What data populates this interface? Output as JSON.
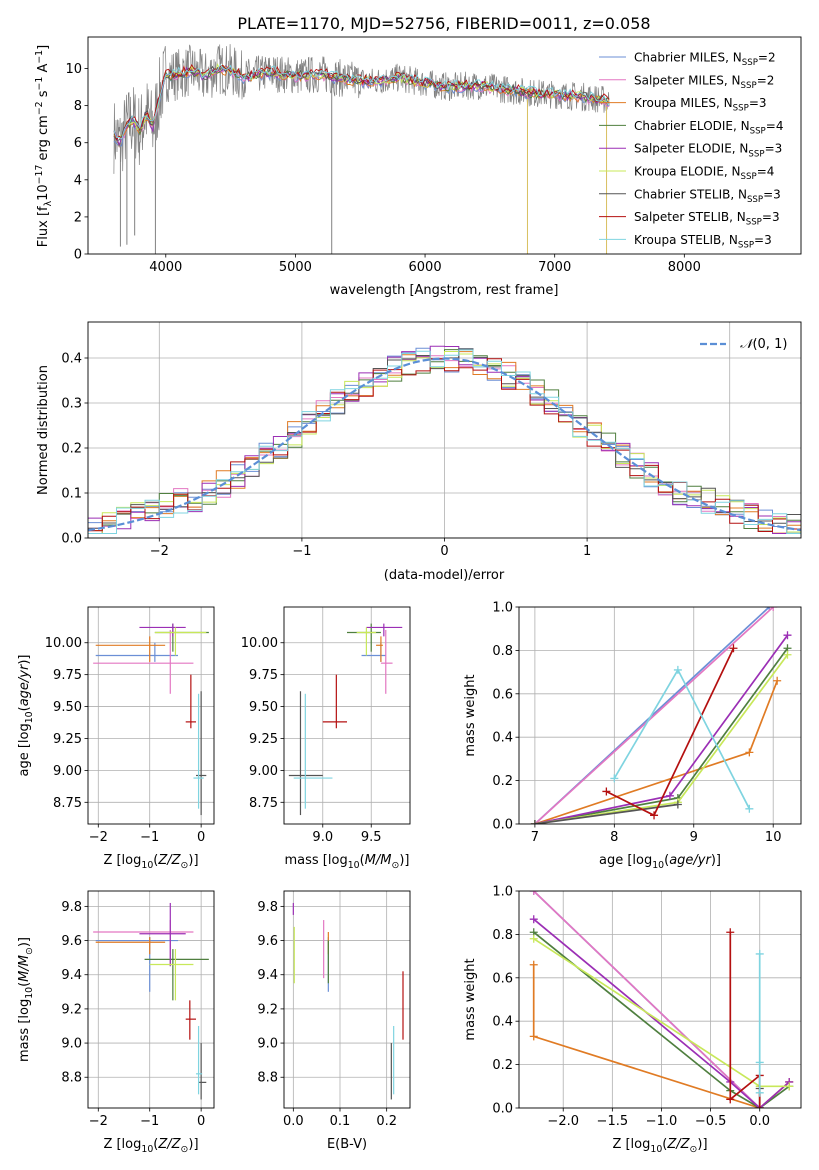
{
  "figure": {
    "title": "PLATE=1170, MJD=52756, FIBERID=0011, z=0.058"
  },
  "models": [
    {
      "key": "chabrier_miles",
      "label": "Chabrier MILES, N",
      "sub": "SSP",
      "nssp": "=2",
      "color": "#6b8fd6"
    },
    {
      "key": "salpeter_miles",
      "label": "Salpeter MILES, N",
      "sub": "SSP",
      "nssp": "=2",
      "color": "#e377c2"
    },
    {
      "key": "kroupa_miles",
      "label": "Kroupa MILES, N",
      "sub": "SSP",
      "nssp": "=3",
      "color": "#e07b24"
    },
    {
      "key": "chabrier_elodie",
      "label": "Chabrier ELODIE, N",
      "sub": "SSP",
      "nssp": "=4",
      "color": "#4f7f3f"
    },
    {
      "key": "salpeter_elodie",
      "label": "Salpeter ELODIE, N",
      "sub": "SSP",
      "nssp": "=3",
      "color": "#9b2fb5"
    },
    {
      "key": "kroupa_elodie",
      "label": "Kroupa ELODIE, N",
      "sub": "SSP",
      "nssp": "=4",
      "color": "#c8e85a"
    },
    {
      "key": "chabrier_stelib",
      "label": "Chabrier STELIB, N",
      "sub": "SSP",
      "nssp": "=3",
      "color": "#555555"
    },
    {
      "key": "salpeter_stelib",
      "label": "Salpeter STELIB, N",
      "sub": "SSP",
      "nssp": "=3",
      "color": "#b41010"
    },
    {
      "key": "kroupa_stelib",
      "label": "Kroupa STELIB, N",
      "sub": "SSP",
      "nssp": "=3",
      "color": "#7fd4e0"
    }
  ],
  "chart_data": [
    {
      "id": "spectrum",
      "type": "line",
      "xlabel": "wavelength [Angstrom, rest frame]",
      "ylabel": "Flux [f",
      "ylabel_full": "Flux [fλ10⁻¹⁷ erg cm⁻² s⁻¹ A⁻¹]",
      "xlim": [
        3400,
        8900
      ],
      "ylim": [
        0,
        11.7
      ],
      "xticks": [
        "4000",
        "5000",
        "6000",
        "7000",
        "8000"
      ],
      "yticks": [
        "0",
        "2",
        "4",
        "6",
        "8",
        "10"
      ],
      "legend": "top-right",
      "data_color": "#808080",
      "continuum": {
        "x": [
          3600,
          3650,
          3700,
          3750,
          3800,
          3850,
          3900,
          3950,
          4000,
          4100,
          4200,
          4300,
          4400,
          4500,
          4600,
          4800,
          5000,
          5200,
          5400,
          5600,
          5800,
          6000,
          6200,
          6400,
          6600,
          6800,
          7000,
          7200,
          7400
        ],
        "y": [
          6.4,
          6.0,
          6.9,
          7.2,
          6.6,
          7.6,
          6.8,
          8.5,
          9.6,
          9.7,
          9.9,
          9.5,
          10.0,
          9.9,
          9.5,
          9.8,
          9.6,
          9.7,
          9.4,
          9.3,
          9.5,
          9.2,
          9.0,
          9.1,
          8.9,
          8.7,
          8.6,
          8.5,
          8.3
        ]
      }
    },
    {
      "id": "residuals",
      "type": "histogram",
      "xlabel": "(data-model)/error",
      "ylabel": "Normed distribution",
      "xlim": [
        -2.5,
        2.5
      ],
      "ylim": [
        0,
        0.48
      ],
      "xticks": [
        "−2",
        "−1",
        "0",
        "1",
        "2"
      ],
      "yticks": [
        "0.0",
        "0.1",
        "0.2",
        "0.3",
        "0.4"
      ],
      "grid": true,
      "legend_label": "N(0, 1)",
      "legend": "top-right"
    },
    {
      "id": "age_vs_Z",
      "type": "errorbar",
      "xlabel": "Z [log",
      "xlabel_full": "Z [log10(Z/Z☉)]",
      "ylabel_full": "age [log10(age/yr)]",
      "xlim": [
        -2.2,
        0.25
      ],
      "ylim": [
        8.58,
        10.28
      ],
      "xticks": [
        "−2",
        "−1",
        "0"
      ],
      "yticks": [
        "8.75",
        "9.00",
        "9.25",
        "9.50",
        "9.75",
        "10.00"
      ],
      "points": [
        {
          "m": 0,
          "x": -0.9,
          "y": 9.9,
          "xe": [
            -2.05,
            -0.45
          ],
          "ye": [
            9.85,
            10.0
          ]
        },
        {
          "m": 1,
          "x": -0.6,
          "y": 9.84,
          "xe": [
            -2.1,
            -0.15
          ],
          "ye": [
            9.6,
            10.1
          ]
        },
        {
          "m": 2,
          "x": -1.0,
          "y": 9.98,
          "xe": [
            -2.05,
            -0.7
          ],
          "ye": [
            9.85,
            10.05
          ]
        },
        {
          "m": 3,
          "x": -0.55,
          "y": 10.08,
          "xe": [
            -0.9,
            0.15
          ],
          "ye": [
            9.93,
            10.15
          ]
        },
        {
          "m": 4,
          "x": -0.55,
          "y": 10.12,
          "xe": [
            -1.2,
            -0.3
          ],
          "ye": [
            10.05,
            10.15
          ]
        },
        {
          "m": 5,
          "x": -0.5,
          "y": 10.08,
          "xe": [
            -0.9,
            0.1
          ],
          "ye": [
            9.9,
            10.12
          ]
        },
        {
          "m": 6,
          "x": 0.0,
          "y": 8.96,
          "xe": [
            -0.1,
            0.1
          ],
          "ye": [
            8.65,
            9.62
          ]
        },
        {
          "m": 7,
          "x": -0.2,
          "y": 9.38,
          "xe": [
            -0.3,
            -0.1
          ],
          "ye": [
            9.33,
            9.75
          ]
        },
        {
          "m": 8,
          "x": -0.05,
          "y": 8.94,
          "xe": [
            -0.15,
            0.05
          ],
          "ye": [
            8.7,
            9.6
          ]
        }
      ]
    },
    {
      "id": "age_vs_mass",
      "type": "errorbar",
      "xlabel_full": "mass [log10(M/M☉)]",
      "xlim": [
        8.6,
        9.9
      ],
      "ylim": [
        8.58,
        10.28
      ],
      "xticks": [
        "9.0",
        "9.5"
      ],
      "yticks": [
        "8.75",
        "9.00",
        "9.25",
        "9.50",
        "9.75",
        "10.00"
      ],
      "points": [
        {
          "m": 0,
          "x": 9.6,
          "y": 9.9,
          "xe": [
            9.4,
            9.65
          ],
          "ye": [
            9.85,
            10.0
          ]
        },
        {
          "m": 1,
          "x": 9.65,
          "y": 9.84,
          "xe": [
            9.6,
            9.72
          ],
          "ye": [
            9.6,
            10.1
          ]
        },
        {
          "m": 2,
          "x": 9.6,
          "y": 9.98,
          "xe": [
            9.55,
            9.62
          ],
          "ye": [
            9.85,
            10.05
          ]
        },
        {
          "m": 3,
          "x": 9.5,
          "y": 10.08,
          "xe": [
            9.25,
            9.6
          ],
          "ye": [
            9.93,
            10.15
          ]
        },
        {
          "m": 4,
          "x": 9.63,
          "y": 10.12,
          "xe": [
            9.45,
            9.82
          ],
          "ye": [
            10.05,
            10.15
          ]
        },
        {
          "m": 5,
          "x": 9.45,
          "y": 10.08,
          "xe": [
            9.35,
            9.55
          ],
          "ye": [
            9.9,
            10.12
          ]
        },
        {
          "m": 6,
          "x": 8.77,
          "y": 8.96,
          "xe": [
            8.65,
            9.0
          ],
          "ye": [
            8.65,
            9.62
          ]
        },
        {
          "m": 7,
          "x": 9.14,
          "y": 9.38,
          "xe": [
            9.0,
            9.25
          ],
          "ye": [
            9.33,
            9.75
          ]
        },
        {
          "m": 8,
          "x": 8.82,
          "y": 8.94,
          "xe": [
            8.7,
            9.1
          ],
          "ye": [
            8.7,
            9.6
          ]
        }
      ]
    },
    {
      "id": "weight_vs_age",
      "type": "line",
      "xlabel_full": "age [log10(age/yr)]",
      "ylabel": "mass weight",
      "xlim": [
        6.8,
        10.35
      ],
      "ylim": [
        0,
        1.0
      ],
      "xticks": [
        "7",
        "8",
        "9",
        "10"
      ],
      "yticks": [
        "0.0",
        "0.2",
        "0.4",
        "0.6",
        "0.8",
        "1.0"
      ],
      "grid": true,
      "series": [
        {
          "m": 0,
          "x": [
            7.0,
            9.95
          ],
          "y": [
            0.0,
            1.0
          ]
        },
        {
          "m": 1,
          "x": [
            7.0,
            10.0
          ],
          "y": [
            0.0,
            1.0
          ]
        },
        {
          "m": 2,
          "x": [
            7.0,
            9.7,
            10.05
          ],
          "y": [
            0.0,
            0.33,
            0.66
          ]
        },
        {
          "m": 3,
          "x": [
            7.0,
            8.8,
            10.18
          ],
          "y": [
            0.0,
            0.12,
            0.81
          ]
        },
        {
          "m": 4,
          "x": [
            7.0,
            8.7,
            10.18
          ],
          "y": [
            0.0,
            0.13,
            0.87
          ]
        },
        {
          "m": 5,
          "x": [
            7.0,
            8.8,
            10.18
          ],
          "y": [
            0.0,
            0.1,
            0.78
          ]
        },
        {
          "m": 6,
          "x": [
            7.0,
            8.8
          ],
          "y": [
            0.0,
            0.09
          ]
        },
        {
          "m": 7,
          "x": [
            7.9,
            8.5,
            9.5
          ],
          "y": [
            0.15,
            0.04,
            0.81
          ]
        },
        {
          "m": 8,
          "x": [
            8.0,
            8.8,
            9.7
          ],
          "y": [
            0.21,
            0.71,
            0.07
          ]
        }
      ]
    },
    {
      "id": "mass_vs_Z",
      "type": "errorbar",
      "xlabel_full": "Z [log10(Z/Z☉)]",
      "ylabel_full": "mass [log10(M/M☉)]",
      "xlim": [
        -2.2,
        0.25
      ],
      "ylim": [
        8.62,
        9.89
      ],
      "xticks": [
        "−2",
        "−1",
        "0"
      ],
      "yticks": [
        "8.8",
        "9.0",
        "9.2",
        "9.4",
        "9.6",
        "9.8"
      ],
      "points": [
        {
          "m": 0,
          "x": -1.0,
          "y": 9.6,
          "xe": [
            -2.05,
            -0.45
          ],
          "ye": [
            9.3,
            9.62
          ]
        },
        {
          "m": 1,
          "x": -0.6,
          "y": 9.65,
          "xe": [
            -2.1,
            -0.15
          ],
          "ye": [
            9.45,
            9.72
          ]
        },
        {
          "m": 2,
          "x": -1.0,
          "y": 9.59,
          "xe": [
            -2.05,
            -0.7
          ],
          "ye": [
            9.52,
            9.62
          ]
        },
        {
          "m": 3,
          "x": -0.55,
          "y": 9.49,
          "xe": [
            -1.1,
            0.15
          ],
          "ye": [
            9.25,
            9.55
          ]
        },
        {
          "m": 4,
          "x": -0.6,
          "y": 9.64,
          "xe": [
            -1.2,
            -0.3
          ],
          "ye": [
            9.45,
            9.82
          ]
        },
        {
          "m": 5,
          "x": -0.5,
          "y": 9.46,
          "xe": [
            -1.0,
            -0.15
          ],
          "ye": [
            9.25,
            9.55
          ]
        },
        {
          "m": 6,
          "x": 0.0,
          "y": 8.77,
          "xe": [
            -0.05,
            0.1
          ],
          "ye": [
            8.67,
            9.0
          ]
        },
        {
          "m": 7,
          "x": -0.22,
          "y": 9.14,
          "xe": [
            -0.3,
            -0.1
          ],
          "ye": [
            9.02,
            9.25
          ]
        },
        {
          "m": 8,
          "x": -0.05,
          "y": 8.82,
          "xe": [
            -0.1,
            0.02
          ],
          "ye": [
            8.7,
            9.1
          ]
        }
      ]
    },
    {
      "id": "mass_vs_ebv",
      "type": "errorbar",
      "xlabel": "E(B-V)",
      "xlim": [
        -0.02,
        0.25
      ],
      "ylim": [
        8.62,
        9.89
      ],
      "xticks": [
        "0.0",
        "0.1",
        "0.2"
      ],
      "yticks": [
        "8.8",
        "9.0",
        "9.2",
        "9.4",
        "9.6",
        "9.8"
      ],
      "points": [
        {
          "m": 0,
          "x": 0.075,
          "y": 9.4,
          "ye": [
            9.3,
            9.62
          ]
        },
        {
          "m": 1,
          "x": 0.065,
          "y": 9.55,
          "ye": [
            9.38,
            9.72
          ]
        },
        {
          "m": 2,
          "x": 0.075,
          "y": 9.6,
          "ye": [
            9.52,
            9.65
          ]
        },
        {
          "m": 3,
          "x": 0.075,
          "y": 9.45,
          "ye": [
            9.35,
            9.6
          ]
        },
        {
          "m": 4,
          "x": 0.0,
          "y": 9.78,
          "ye": [
            9.75,
            9.82
          ]
        },
        {
          "m": 5,
          "x": 0.002,
          "y": 9.5,
          "ye": [
            9.35,
            9.68
          ]
        },
        {
          "m": 6,
          "x": 0.21,
          "y": 8.8,
          "ye": [
            8.67,
            9.0
          ]
        },
        {
          "m": 7,
          "x": 0.235,
          "y": 9.2,
          "ye": [
            9.02,
            9.42
          ]
        },
        {
          "m": 8,
          "x": 0.215,
          "y": 8.9,
          "ye": [
            8.7,
            9.1
          ]
        }
      ]
    },
    {
      "id": "weight_vs_Z",
      "type": "line",
      "xlabel_full": "Z [log10(Z/Z☉)]",
      "ylabel": "mass weight",
      "xlim": [
        -2.45,
        0.42
      ],
      "ylim": [
        0,
        1.0
      ],
      "xticks": [
        "−2.0",
        "−1.5",
        "−1.0",
        "−0.5",
        "0.0"
      ],
      "yticks": [
        "0.0",
        "0.2",
        "0.4",
        "0.6",
        "0.8",
        "1.0"
      ],
      "grid": true,
      "series": [
        {
          "m": 0,
          "x": [
            -2.3,
            0.0
          ],
          "y": [
            1.0,
            0.0
          ]
        },
        {
          "m": 1,
          "x": [
            -2.3,
            0.0
          ],
          "y": [
            1.0,
            0.0
          ]
        },
        {
          "m": 2,
          "x": [
            -2.3,
            -2.3,
            0.0,
            0.3
          ],
          "y": [
            0.66,
            0.33,
            0.0,
            0.12
          ]
        },
        {
          "m": 3,
          "x": [
            -2.3,
            -0.3,
            0.0,
            0.3
          ],
          "y": [
            0.81,
            0.08,
            0.0,
            0.1
          ]
        },
        {
          "m": 4,
          "x": [
            -2.3,
            -0.3,
            0.0,
            0.3
          ],
          "y": [
            0.87,
            0.12,
            0.0,
            0.12
          ]
        },
        {
          "m": 5,
          "x": [
            -2.3,
            0.0,
            0.3
          ],
          "y": [
            0.78,
            0.1,
            0.1
          ]
        },
        {
          "m": 6,
          "x": [
            0.0,
            0.0
          ],
          "y": [
            0.0,
            0.09
          ]
        },
        {
          "m": 7,
          "x": [
            -0.3,
            -0.3,
            0.0,
            0.0
          ],
          "y": [
            0.81,
            0.04,
            0.15,
            0.0
          ]
        },
        {
          "m": 8,
          "x": [
            0.0,
            0.0,
            0.0
          ],
          "y": [
            0.71,
            0.21,
            0.07
          ]
        }
      ]
    }
  ]
}
